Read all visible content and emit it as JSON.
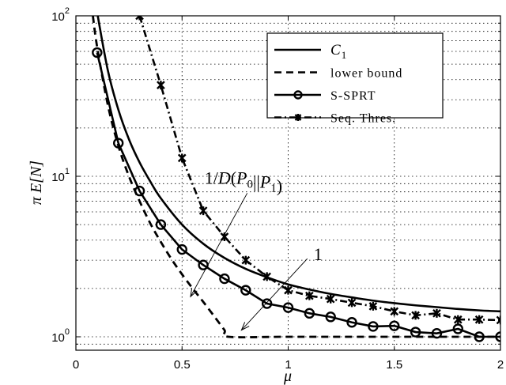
{
  "chart_data": {
    "type": "line",
    "title": "",
    "xlabel": "μ",
    "ylabel": "π E[N]",
    "xlim": [
      0,
      2
    ],
    "ylim": [
      0.82,
      100
    ],
    "yscale": "log",
    "grid": true,
    "legend_position": "upper right",
    "x_ticks": [
      "0",
      "0.5",
      "1",
      "1.5",
      "2"
    ],
    "y_ticks": [
      {
        "base": "10",
        "exp": "0"
      },
      {
        "base": "10",
        "exp": "1"
      },
      {
        "base": "10",
        "exp": "2"
      }
    ],
    "series": [
      {
        "name": "C1",
        "legend_label": "C",
        "legend_sub": "1",
        "style": "solid",
        "marker": "none",
        "x": [
          0.1,
          0.15,
          0.2,
          0.25,
          0.3,
          0.35,
          0.4,
          0.5,
          0.6,
          0.7,
          0.8,
          0.9,
          1.0,
          1.1,
          1.2,
          1.3,
          1.4,
          1.5,
          1.6,
          1.7,
          1.8,
          1.9,
          2.0
        ],
        "values": [
          105,
          46,
          26,
          17,
          12.2,
          9.3,
          7.3,
          5.0,
          3.8,
          3.1,
          2.65,
          2.35,
          2.12,
          1.97,
          1.85,
          1.76,
          1.68,
          1.62,
          1.57,
          1.53,
          1.49,
          1.46,
          1.44
        ]
      },
      {
        "name": "lower bound",
        "legend_label": "lower bound",
        "style": "dashed",
        "marker": "none",
        "x": [
          0.08,
          0.1,
          0.15,
          0.2,
          0.25,
          0.3,
          0.35,
          0.4,
          0.45,
          0.5,
          0.55,
          0.6,
          0.65,
          0.7,
          0.72,
          1.0,
          1.5,
          2.0
        ],
        "values": [
          100,
          64,
          28,
          15.5,
          10.0,
          7.0,
          5.1,
          3.9,
          3.05,
          2.45,
          2.0,
          1.65,
          1.35,
          1.1,
          1.0,
          1.0,
          1.0,
          1.0
        ]
      },
      {
        "name": "S-SPRT",
        "legend_label": "S-SPRT",
        "style": "solid",
        "marker": "circle",
        "x": [
          0.1,
          0.2,
          0.3,
          0.4,
          0.5,
          0.6,
          0.7,
          0.8,
          0.9,
          1.0,
          1.1,
          1.2,
          1.3,
          1.4,
          1.5,
          1.6,
          1.7,
          1.8,
          1.9,
          2.0
        ],
        "values": [
          59,
          16.1,
          8.1,
          5.0,
          3.5,
          2.8,
          2.3,
          1.95,
          1.61,
          1.52,
          1.4,
          1.33,
          1.23,
          1.16,
          1.17,
          1.07,
          1.05,
          1.12,
          1.0,
          1.0
        ]
      },
      {
        "name": "Seq. Thres.",
        "legend_label": "Seq. Thres.",
        "style": "dashdot",
        "marker": "x",
        "x": [
          0.3,
          0.4,
          0.5,
          0.6,
          0.7,
          0.8,
          0.9,
          1.0,
          1.1,
          1.2,
          1.3,
          1.4,
          1.5,
          1.6,
          1.7,
          1.8,
          1.9,
          2.0
        ],
        "values": [
          100,
          37,
          13,
          6.1,
          4.2,
          3.0,
          2.37,
          1.95,
          1.8,
          1.72,
          1.63,
          1.55,
          1.44,
          1.36,
          1.4,
          1.28,
          1.28,
          1.27
        ]
      }
    ],
    "annotations": [
      {
        "text": "1/D(P0||P1)",
        "text_x": 0.93,
        "text_y": 9.0,
        "arrow_to_x": 0.54,
        "arrow_to_y": 1.78
      },
      {
        "text": "1",
        "text_x": 1.12,
        "text_y": 3.0,
        "arrow_to_x": 0.78,
        "arrow_to_y": 1.1
      }
    ]
  }
}
